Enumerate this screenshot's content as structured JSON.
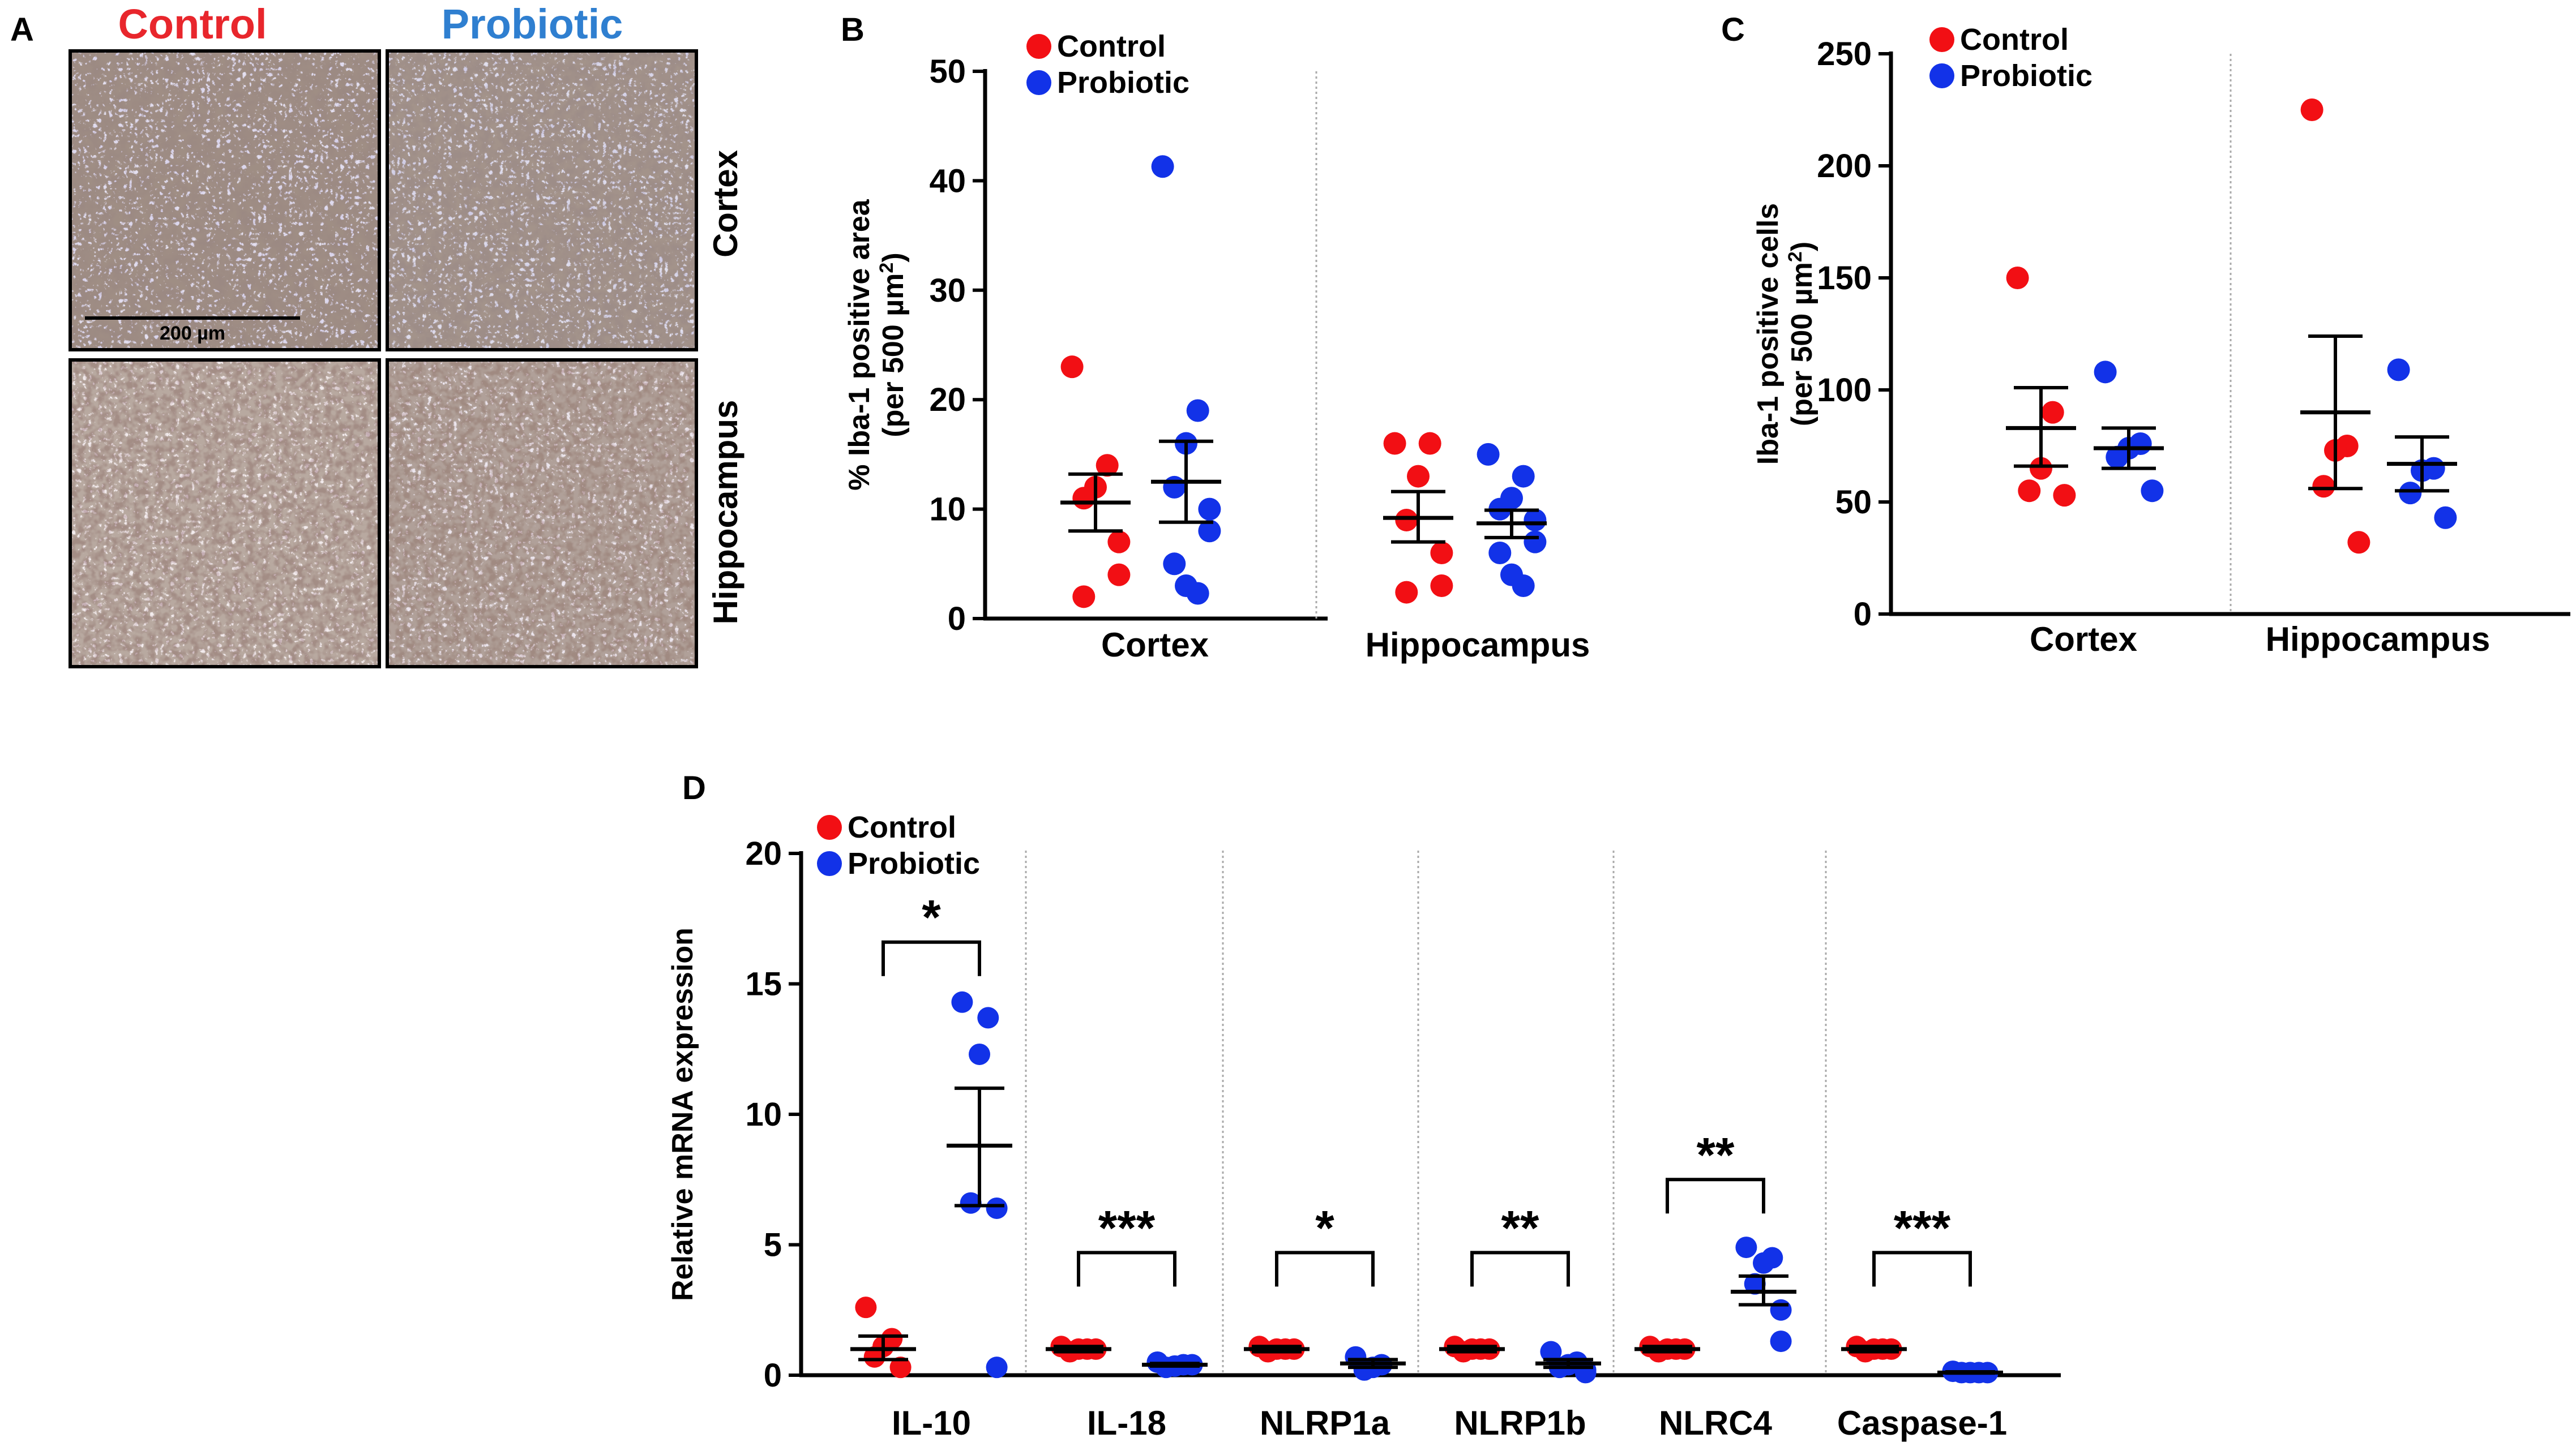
{
  "panel_a": {
    "letter": "A",
    "col_headers": [
      {
        "text": "Control",
        "color": "#e8262c"
      },
      {
        "text": "Probiotic",
        "color": "#2f7fd0"
      }
    ],
    "row_labels": [
      "Cortex",
      "Hippocampus"
    ],
    "scale_bar_label": "200 µm"
  },
  "legend": {
    "control": "Control",
    "probiotic": "Probiotic"
  },
  "colors": {
    "control": "#f20f14",
    "probiotic": "#1232e8",
    "divider": "#aaaaaa",
    "axis": "#000000"
  },
  "chart_data": [
    {
      "id": "B",
      "letter": "B",
      "type": "scatter",
      "ylabel": "% Iba-1 positive area",
      "ylabel2": "(per 500 µm",
      "ylabel_sup": "2",
      "ylabel_close": ")",
      "ylim": [
        0,
        50
      ],
      "yticks": [
        0,
        10,
        20,
        30,
        40,
        50
      ],
      "categories": [
        "Cortex",
        "Hippocampus"
      ],
      "groups": [
        {
          "category": "Cortex",
          "control": {
            "points": [
              23,
              14,
              12,
              11,
              7,
              4,
              2
            ],
            "mean": 10.6,
            "sem_low": 8.0,
            "sem_high": 13.2
          },
          "probiotic": {
            "points": [
              41.3,
              19,
              16,
              12,
              10,
              8,
              5,
              3,
              2.3
            ],
            "mean": 12.5,
            "sem_low": 8.8,
            "sem_high": 16.2
          }
        },
        {
          "category": "Hippocampus",
          "control": {
            "points": [
              16,
              16,
              13,
              9,
              6,
              3,
              2.4
            ],
            "mean": 9.2,
            "sem_low": 7.0,
            "sem_high": 11.6
          },
          "probiotic": {
            "points": [
              15,
              13,
              11,
              10,
              9,
              7,
              6,
              4,
              3
            ],
            "mean": 8.7,
            "sem_low": 7.4,
            "sem_high": 9.9
          }
        }
      ]
    },
    {
      "id": "C",
      "letter": "C",
      "type": "scatter",
      "ylabel": "Iba-1 positive cells",
      "ylabel2": "(per 500 µm",
      "ylabel_sup": "2",
      "ylabel_close": ")",
      "ylim": [
        0,
        250
      ],
      "yticks": [
        0,
        50,
        100,
        150,
        200,
        250
      ],
      "categories": [
        "Cortex",
        "Hippocampus"
      ],
      "groups": [
        {
          "category": "Cortex",
          "control": {
            "points": [
              150,
              90,
              65,
              55,
              53
            ],
            "mean": 83,
            "sem_low": 66,
            "sem_high": 101
          },
          "probiotic": {
            "points": [
              108,
              76,
              74,
              70,
              55
            ],
            "mean": 74,
            "sem_low": 65,
            "sem_high": 83
          }
        },
        {
          "category": "Hippocampus",
          "control": {
            "points": [
              225,
              75,
              73,
              57,
              32
            ],
            "mean": 90,
            "sem_low": 56,
            "sem_high": 124
          },
          "probiotic": {
            "points": [
              109,
              65,
              64,
              54,
              43
            ],
            "mean": 67,
            "sem_low": 55,
            "sem_high": 79
          }
        }
      ]
    },
    {
      "id": "D",
      "letter": "D",
      "type": "scatter",
      "ylabel": "Relative mRNA expression",
      "ylim": [
        0,
        20
      ],
      "yticks": [
        0,
        5,
        10,
        15,
        20
      ],
      "categories": [
        "IL-10",
        "IL-18",
        "NLRP1a",
        "NLRP1b",
        "NLRC4",
        "Caspase-1"
      ],
      "groups": [
        {
          "category": "IL-10",
          "sig": "*",
          "bracket_y": 16.6,
          "control": {
            "points": [
              2.6,
              1.4,
              1.1,
              0.7,
              0.3
            ],
            "mean": 1.0,
            "sem_low": 0.6,
            "sem_high": 1.5
          },
          "probiotic": {
            "points": [
              14.3,
              13.7,
              12.3,
              6.6,
              6.4,
              0.3
            ],
            "mean": 8.8,
            "sem_low": 6.5,
            "sem_high": 11.0
          }
        },
        {
          "category": "IL-18",
          "sig": "***",
          "bracket_y": 4.7,
          "control": {
            "points": [
              1.1,
              1.0,
              1.0,
              0.9,
              1.0
            ],
            "mean": 1.0,
            "sem_low": 0.9,
            "sem_high": 1.1
          },
          "probiotic": {
            "points": [
              0.5,
              0.4,
              0.35,
              0.3,
              0.4
            ],
            "mean": 0.4,
            "sem_low": 0.35,
            "sem_high": 0.45
          }
        },
        {
          "category": "NLRP1a",
          "sig": "*",
          "bracket_y": 4.7,
          "control": {
            "points": [
              1.1,
              1.0,
              1.0,
              0.9,
              1.0
            ],
            "mean": 1.0,
            "sem_low": 0.9,
            "sem_high": 1.1
          },
          "probiotic": {
            "points": [
              0.7,
              0.4,
              0.3,
              0.2
            ],
            "mean": 0.45,
            "sem_low": 0.3,
            "sem_high": 0.6
          }
        },
        {
          "category": "NLRP1b",
          "sig": "**",
          "bracket_y": 4.7,
          "control": {
            "points": [
              1.1,
              1.0,
              1.0,
              0.9,
              1.0
            ],
            "mean": 1.0,
            "sem_low": 0.9,
            "sem_high": 1.1
          },
          "probiotic": {
            "points": [
              0.9,
              0.5,
              0.4,
              0.3,
              0.2,
              0.1
            ],
            "mean": 0.45,
            "sem_low": 0.3,
            "sem_high": 0.6
          }
        },
        {
          "category": "NLRC4",
          "sig": "**",
          "bracket_y": 7.5,
          "control": {
            "points": [
              1.1,
              1.0,
              1.0,
              0.9,
              1.0
            ],
            "mean": 1.0,
            "sem_low": 0.9,
            "sem_high": 1.1
          },
          "probiotic": {
            "points": [
              4.9,
              4.5,
              4.3,
              3.5,
              2.5,
              1.3
            ],
            "mean": 3.2,
            "sem_low": 2.7,
            "sem_high": 3.8
          }
        },
        {
          "category": "Caspase-1",
          "sig": "***",
          "bracket_y": 4.7,
          "control": {
            "points": [
              1.1,
              1.0,
              1.0,
              0.9,
              1.0
            ],
            "mean": 1.0,
            "sem_low": 0.9,
            "sem_high": 1.1
          },
          "probiotic": {
            "points": [
              0.15,
              0.1,
              0.1,
              0.1,
              0.1
            ],
            "mean": 0.1,
            "sem_low": 0.08,
            "sem_high": 0.13
          }
        }
      ]
    }
  ]
}
